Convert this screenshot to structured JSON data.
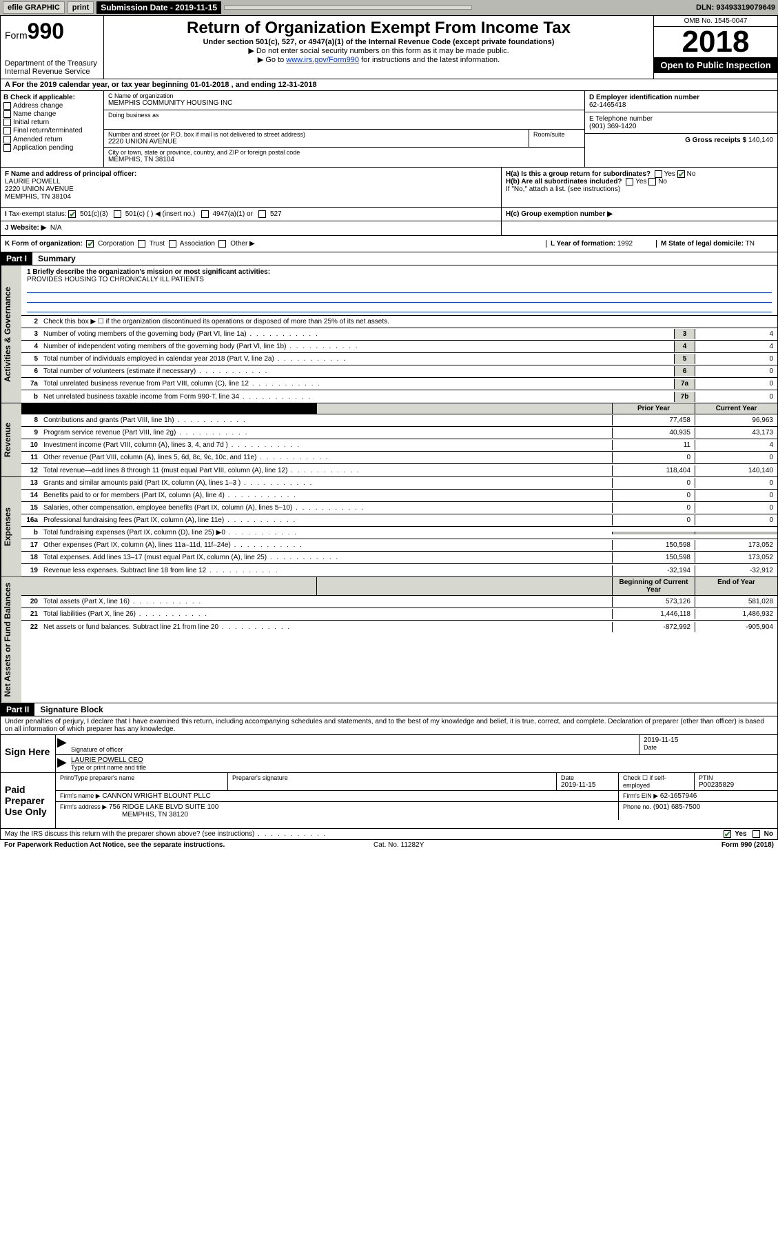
{
  "topbar": {
    "efile": "efile GRAPHIC",
    "print": "print",
    "sub_label": "Submission Date - 2019-11-15",
    "dln": "DLN: 93493319079649"
  },
  "header": {
    "form_label": "Form",
    "form_num": "990",
    "dept": "Department of the Treasury Internal Revenue Service",
    "title": "Return of Organization Exempt From Income Tax",
    "sub": "Under section 501(c), 527, or 4947(a)(1) of the Internal Revenue Code (except private foundations)",
    "note1": "▶ Do not enter social security numbers on this form as it may be made public.",
    "note2_pre": "▶ Go to ",
    "note2_link": "www.irs.gov/Form990",
    "note2_post": " for instructions and the latest information.",
    "omb": "OMB No. 1545-0047",
    "year": "2018",
    "open": "Open to Public Inspection"
  },
  "section_a": "A For the 2019 calendar year, or tax year beginning 01-01-2018   , and ending 12-31-2018",
  "box_b": {
    "label": "B Check if applicable:",
    "opts": [
      "Address change",
      "Name change",
      "Initial return",
      "Final return/terminated",
      "Amended return",
      "Application pending"
    ]
  },
  "box_c": {
    "name_label": "C Name of organization",
    "name": "MEMPHIS COMMUNITY HOUSING INC",
    "dba_label": "Doing business as",
    "dba": "",
    "addr_label": "Number and street (or P.O. box if mail is not delivered to street address)",
    "addr": "2220 UNION AVENUE",
    "room_label": "Room/suite",
    "city_label": "City or town, state or province, country, and ZIP or foreign postal code",
    "city": "MEMPHIS, TN  38104"
  },
  "box_d": {
    "label": "D Employer identification number",
    "ein": "62-1465418",
    "tel_label": "E Telephone number",
    "tel": "(901) 369-1420",
    "gross_label": "G Gross receipts $",
    "gross": "140,140"
  },
  "box_f": {
    "label": "F  Name and address of principal officer:",
    "name": "LAURIE POWELL",
    "addr1": "2220 UNION AVENUE",
    "addr2": "MEMPHIS, TN  38104"
  },
  "box_h": {
    "a_label": "H(a)  Is this a group return for subordinates?",
    "b_label": "H(b)  Are all subordinates included?",
    "b_note": "If \"No,\" attach a list. (see instructions)",
    "c_label": "H(c)  Group exemption number ▶"
  },
  "box_i": {
    "label": "Tax-exempt status:",
    "opts": [
      "501(c)(3)",
      "501(c) (  ) ◀ (insert no.)",
      "4947(a)(1) or",
      "527"
    ]
  },
  "box_j": {
    "label": "J Website: ▶",
    "val": "N/A"
  },
  "box_k": {
    "label": "K Form of organization:",
    "opts": [
      "Corporation",
      "Trust",
      "Association",
      "Other ▶"
    ],
    "l_label": "L Year of formation:",
    "l_val": "1992",
    "m_label": "M State of legal domicile:",
    "m_val": "TN"
  },
  "part1": {
    "header": "Part I",
    "title": "Summary",
    "mission_label": "1  Briefly describe the organization's mission or most significant activities:",
    "mission": "PROVIDES HOUSING TO CHRONICALLY ILL PATIENTS",
    "line2": "Check this box ▶ ☐  if the organization discontinued its operations or disposed of more than 25% of its net assets.",
    "rows_single": [
      {
        "n": "3",
        "d": "Number of voting members of the governing body (Part VI, line 1a)",
        "b": "3",
        "v": "4"
      },
      {
        "n": "4",
        "d": "Number of independent voting members of the governing body (Part VI, line 1b)",
        "b": "4",
        "v": "4"
      },
      {
        "n": "5",
        "d": "Total number of individuals employed in calendar year 2018 (Part V, line 2a)",
        "b": "5",
        "v": "0"
      },
      {
        "n": "6",
        "d": "Total number of volunteers (estimate if necessary)",
        "b": "6",
        "v": "0"
      },
      {
        "n": "7a",
        "d": "Total unrelated business revenue from Part VIII, column (C), line 12",
        "b": "7a",
        "v": "0"
      },
      {
        "n": "b",
        "d": "Net unrelated business taxable income from Form 990-T, line 34",
        "b": "7b",
        "v": "0"
      }
    ],
    "col_headers": {
      "prior": "Prior Year",
      "current": "Current Year"
    },
    "revenue": [
      {
        "n": "8",
        "d": "Contributions and grants (Part VIII, line 1h)",
        "p": "77,458",
        "c": "96,963"
      },
      {
        "n": "9",
        "d": "Program service revenue (Part VIII, line 2g)",
        "p": "40,935",
        "c": "43,173"
      },
      {
        "n": "10",
        "d": "Investment income (Part VIII, column (A), lines 3, 4, and 7d )",
        "p": "11",
        "c": "4"
      },
      {
        "n": "11",
        "d": "Other revenue (Part VIII, column (A), lines 5, 6d, 8c, 9c, 10c, and 11e)",
        "p": "0",
        "c": "0"
      },
      {
        "n": "12",
        "d": "Total revenue—add lines 8 through 11 (must equal Part VIII, column (A), line 12)",
        "p": "118,404",
        "c": "140,140"
      }
    ],
    "expenses": [
      {
        "n": "13",
        "d": "Grants and similar amounts paid (Part IX, column (A), lines 1–3 )",
        "p": "0",
        "c": "0"
      },
      {
        "n": "14",
        "d": "Benefits paid to or for members (Part IX, column (A), line 4)",
        "p": "0",
        "c": "0"
      },
      {
        "n": "15",
        "d": "Salaries, other compensation, employee benefits (Part IX, column (A), lines 5–10)",
        "p": "0",
        "c": "0"
      },
      {
        "n": "16a",
        "d": "Professional fundraising fees (Part IX, column (A), line 11e)",
        "p": "0",
        "c": "0"
      },
      {
        "n": "b",
        "d": "Total fundraising expenses (Part IX, column (D), line 25) ▶0",
        "p": "",
        "c": "",
        "shaded": true
      },
      {
        "n": "17",
        "d": "Other expenses (Part IX, column (A), lines 11a–11d, 11f–24e)",
        "p": "150,598",
        "c": "173,052"
      },
      {
        "n": "18",
        "d": "Total expenses. Add lines 13–17 (must equal Part IX, column (A), line 25)",
        "p": "150,598",
        "c": "173,052"
      },
      {
        "n": "19",
        "d": "Revenue less expenses. Subtract line 18 from line 12",
        "p": "-32,194",
        "c": "-32,912"
      }
    ],
    "col_headers2": {
      "beg": "Beginning of Current Year",
      "end": "End of Year"
    },
    "netassets": [
      {
        "n": "20",
        "d": "Total assets (Part X, line 16)",
        "p": "573,126",
        "c": "581,028"
      },
      {
        "n": "21",
        "d": "Total liabilities (Part X, line 26)",
        "p": "1,446,118",
        "c": "1,486,932"
      },
      {
        "n": "22",
        "d": "Net assets or fund balances. Subtract line 21 from line 20",
        "p": "-872,992",
        "c": "-905,904"
      }
    ],
    "side_labels": {
      "ag": "Activities & Governance",
      "rev": "Revenue",
      "exp": "Expenses",
      "net": "Net Assets or Fund Balances"
    }
  },
  "part2": {
    "header": "Part II",
    "title": "Signature Block",
    "perjury": "Under penalties of perjury, I declare that I have examined this return, including accompanying schedules and statements, and to the best of my knowledge and belief, it is true, correct, and complete. Declaration of preparer (other than officer) is based on all information of which preparer has any knowledge.",
    "sign_here": "Sign Here",
    "sig_officer": "Signature of officer",
    "sig_date": "2019-11-15",
    "date_label": "Date",
    "officer_name": "LAURIE POWELL CEO",
    "type_name": "Type or print name and title",
    "paid": "Paid Preparer Use Only",
    "prep_name_label": "Print/Type preparer's name",
    "prep_sig_label": "Preparer's signature",
    "prep_date_label": "Date",
    "prep_date": "2019-11-15",
    "check_label": "Check ☐ if self-employed",
    "ptin_label": "PTIN",
    "ptin": "P00235829",
    "firm_name_label": "Firm's name     ▶",
    "firm_name": "CANNON WRIGHT BLOUNT PLLC",
    "firm_ein_label": "Firm's EIN ▶",
    "firm_ein": "62-1657946",
    "firm_addr_label": "Firm's address ▶",
    "firm_addr": "756 RIDGE LAKE BLVD SUITE 100",
    "firm_city": "MEMPHIS, TN  38120",
    "phone_label": "Phone no.",
    "phone": "(901) 685-7500",
    "discuss": "May the IRS discuss this return with the preparer shown above? (see instructions)",
    "yes": "Yes",
    "no": "No"
  },
  "footer": {
    "paperwork": "For Paperwork Reduction Act Notice, see the separate instructions.",
    "cat": "Cat. No. 11282Y",
    "form": "Form 990 (2018)"
  }
}
